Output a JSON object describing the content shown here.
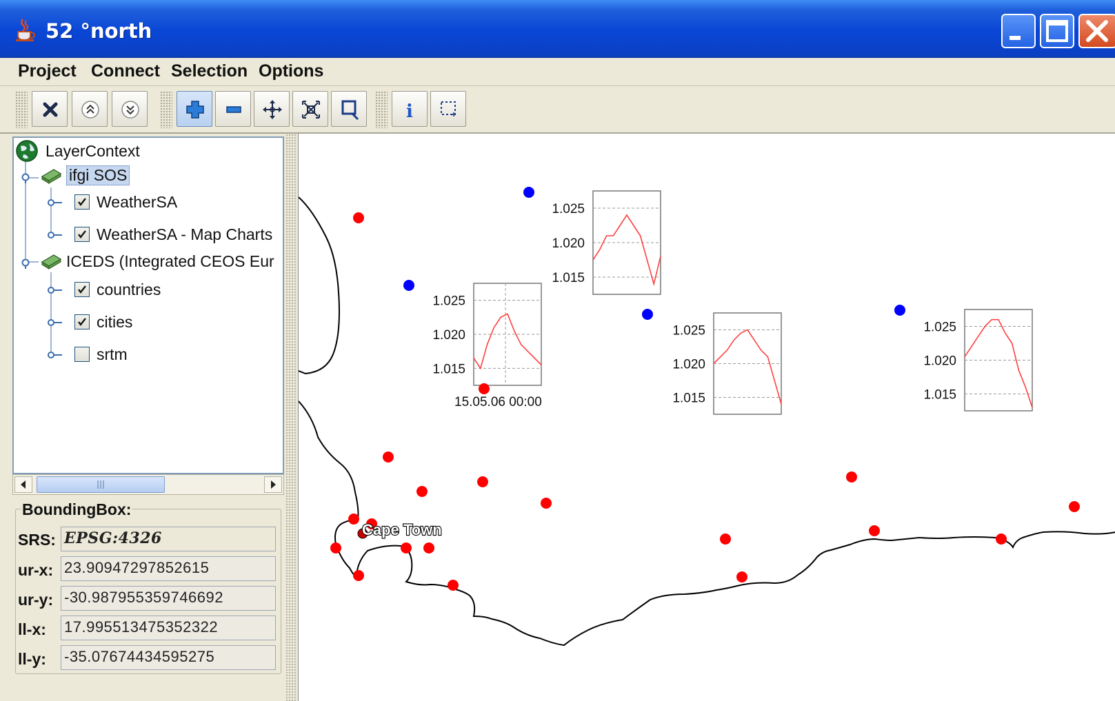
{
  "window": {
    "title": "52 °north",
    "controls": [
      "minimize-icon",
      "maximize-icon",
      "close-icon"
    ]
  },
  "menu": [
    "Project",
    "Connect",
    "Selection",
    "Options"
  ],
  "toolbar": {
    "buttons": [
      "remove-layer-icon",
      "move-layer-up-icon",
      "move-layer-down-icon",
      "zoom-in-icon",
      "zoom-out-icon",
      "pan-icon",
      "zoom-to-extent-icon",
      "zoom-to-box-icon",
      "info-icon",
      "select-box-icon"
    ],
    "active": "zoom-in-icon"
  },
  "tree": {
    "root": "LayerContext",
    "nodes": [
      {
        "label": "ifgi SOS",
        "selected": true,
        "children": [
          {
            "label": "WeatherSA",
            "checked": true
          },
          {
            "label": "WeatherSA - Map Charts",
            "checked": true
          }
        ]
      },
      {
        "label": "ICEDS (Integrated CEOS Eur",
        "selected": false,
        "children": [
          {
            "label": "countries",
            "checked": true
          },
          {
            "label": "cities",
            "checked": true
          },
          {
            "label": "srtm",
            "checked": false
          }
        ]
      }
    ]
  },
  "bbox": {
    "title": "BoundingBox:",
    "srs_label": "SRS:",
    "srs": "EPSG:4326",
    "urx_label": "ur-x:",
    "urx": "23.90947297852615",
    "ury_label": "ur-y:",
    "ury": "-30.987955359746692",
    "llx_label": "ll-x:",
    "llx": "17.995513475352322",
    "lly_label": "ll-y:",
    "lly": "-35.07674434595275"
  },
  "map": {
    "city_label": "Cape Town",
    "colors": {
      "station": "#FF0000",
      "weather_station": "#0000FF",
      "coast": "#000000",
      "chart_line": "#FF4040"
    },
    "charts": [
      {
        "yticks": [
          "1.025",
          "1.020",
          "1.015"
        ],
        "xlabel": "15.05.06 00:00",
        "values": [
          1.0165,
          1.015,
          1.0185,
          1.021,
          1.0225,
          1.023,
          1.0205,
          1.0185,
          1.0175,
          1.0165,
          1.0155
        ]
      },
      {
        "yticks": [
          "1.025",
          "1.020",
          "1.015"
        ],
        "xlabel": "",
        "values": [
          1.0175,
          1.019,
          1.021,
          1.021,
          1.0225,
          1.024,
          1.0225,
          1.021,
          1.0175,
          1.014,
          1.018
        ]
      },
      {
        "yticks": [
          "1.025",
          "1.020",
          "1.015"
        ],
        "xlabel": "",
        "values": [
          1.02,
          1.021,
          1.022,
          1.0235,
          1.0245,
          1.025,
          1.0235,
          1.022,
          1.021,
          1.0175,
          1.014
        ]
      },
      {
        "yticks": [
          "1.025",
          "1.020",
          "1.015"
        ],
        "xlabel": "",
        "values": [
          1.0205,
          1.022,
          1.0235,
          1.025,
          1.026,
          1.026,
          1.024,
          1.0225,
          1.0185,
          1.016,
          1.013
        ]
      }
    ]
  }
}
